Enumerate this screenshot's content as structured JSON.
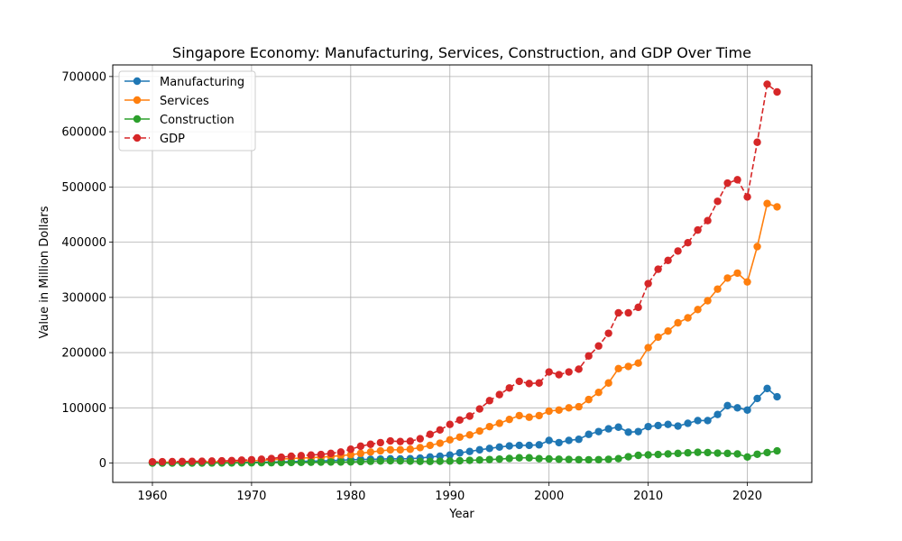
{
  "chart_data": {
    "type": "line",
    "title": "Singapore Economy: Manufacturing, Services, Construction, and GDP Over Time",
    "xlabel": "Year",
    "ylabel": "Value in Million Dollars",
    "xlim": [
      1956,
      2026.5
    ],
    "ylim": [
      -35000,
      721000
    ],
    "xticks": [
      1960,
      1970,
      1980,
      1990,
      2000,
      2010,
      2020
    ],
    "yticks": [
      0,
      100000,
      200000,
      300000,
      400000,
      500000,
      600000,
      700000
    ],
    "grid": true,
    "legend_position": "top-left",
    "x": [
      1960,
      1961,
      1962,
      1963,
      1964,
      1965,
      1966,
      1967,
      1968,
      1969,
      1970,
      1971,
      1972,
      1973,
      1974,
      1975,
      1976,
      1977,
      1978,
      1979,
      1980,
      1981,
      1982,
      1983,
      1984,
      1985,
      1986,
      1987,
      1988,
      1989,
      1990,
      1991,
      1992,
      1993,
      1994,
      1995,
      1996,
      1997,
      1998,
      1999,
      2000,
      2001,
      2002,
      2003,
      2004,
      2005,
      2006,
      2007,
      2008,
      2009,
      2010,
      2011,
      2012,
      2013,
      2014,
      2015,
      2016,
      2017,
      2018,
      2019,
      2020,
      2021,
      2022,
      2023
    ],
    "series": [
      {
        "name": "Manufacturing",
        "color": "#1f77b4",
        "dash": false,
        "values": [
          300,
          350,
          400,
          450,
          500,
          600,
          700,
          800,
          950,
          1100,
          1300,
          1600,
          1900,
          2300,
          2700,
          3000,
          3400,
          3900,
          4500,
          5200,
          6000,
          6500,
          6800,
          7200,
          7800,
          7500,
          7900,
          9000,
          11000,
          12500,
          14500,
          18500,
          21000,
          24000,
          26500,
          29000,
          31000,
          32000,
          32000,
          33000,
          41000,
          37000,
          41000,
          43000,
          52000,
          57000,
          62000,
          65000,
          56000,
          57000,
          66000,
          68000,
          70000,
          67000,
          72000,
          77000,
          77000,
          88000,
          104000,
          100000,
          96000,
          117000,
          135000,
          120000
        ]
      },
      {
        "name": "Services",
        "color": "#ff7f0e",
        "dash": false,
        "values": [
          1500,
          1600,
          1700,
          1900,
          2000,
          2200,
          2400,
          2700,
          3100,
          3600,
          4200,
          4900,
          5900,
          7200,
          8300,
          9000,
          9800,
          10600,
          12000,
          13500,
          15000,
          17500,
          20000,
          22000,
          24000,
          24000,
          25000,
          28000,
          32000,
          36000,
          42000,
          47000,
          51000,
          58000,
          66000,
          72000,
          79000,
          86000,
          83000,
          86000,
          94000,
          96000,
          100000,
          102000,
          115000,
          128000,
          145000,
          171000,
          175000,
          181000,
          209000,
          228000,
          239000,
          254000,
          263000,
          278000,
          294000,
          315000,
          335000,
          344000,
          328000,
          392000,
          470000,
          464000
        ]
      },
      {
        "name": "Construction",
        "color": "#2ca02c",
        "dash": false,
        "values": [
          50,
          60,
          70,
          80,
          100,
          120,
          150,
          200,
          300,
          400,
          500,
          600,
          700,
          900,
          1100,
          1300,
          1500,
          1700,
          1800,
          1900,
          2100,
          2600,
          3200,
          3800,
          4200,
          3900,
          3500,
          3100,
          3000,
          3300,
          3600,
          4200,
          4900,
          5500,
          6400,
          7200,
          8300,
          9500,
          9500,
          8000,
          7500,
          7000,
          6500,
          6200,
          6000,
          6200,
          6800,
          8000,
          11500,
          14000,
          14800,
          15500,
          16500,
          17500,
          18500,
          19500,
          19000,
          18000,
          17500,
          16500,
          11000,
          16000,
          19000,
          22000
        ]
      },
      {
        "name": "GDP",
        "color": "#d62728",
        "dash": true,
        "values": [
          2200,
          2400,
          2600,
          2900,
          3100,
          3300,
          3600,
          4000,
          4500,
          5200,
          6000,
          6900,
          8100,
          10500,
          12500,
          13500,
          14500,
          15500,
          17500,
          20000,
          25000,
          30500,
          34000,
          37000,
          40000,
          39000,
          39500,
          44000,
          52000,
          60000,
          70000,
          78000,
          85000,
          98000,
          113000,
          124000,
          136000,
          148000,
          144000,
          145000,
          165000,
          160000,
          165000,
          170000,
          194000,
          212000,
          235000,
          272000,
          272000,
          282000,
          325000,
          351000,
          367000,
          384000,
          399000,
          422000,
          439000,
          474000,
          507000,
          513000,
          482000,
          581000,
          686000,
          672000
        ]
      }
    ]
  }
}
